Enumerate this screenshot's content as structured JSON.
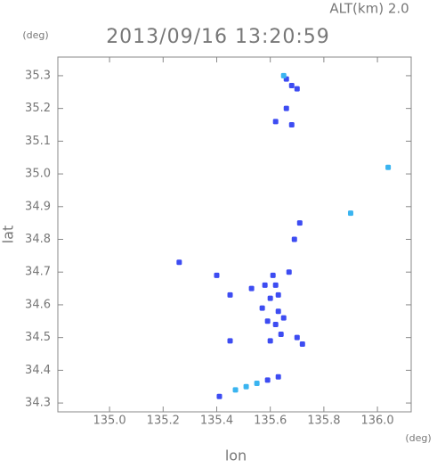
{
  "chart_data": {
    "type": "scatter",
    "title": "2013/09/16 13:20:59",
    "subtitle": "ALT(km)  2.0",
    "x_label": "lon",
    "y_label": "lat",
    "x_unit": "(deg)",
    "y_unit": "(deg)",
    "xlim": [
      134.807,
      136.126
    ],
    "ylim": [
      34.273,
      35.357
    ],
    "xticks": [
      {
        "value": 135.0,
        "label": "135.0"
      },
      135.2,
      135.4,
      135.6,
      135.8,
      {
        "value": 136.0,
        "label": "136.0"
      }
    ],
    "yticks": [
      34.3,
      34.4,
      34.5,
      34.6,
      34.7,
      34.8,
      34.9,
      {
        "value": 35.0,
        "label": "35.0"
      },
      35.1,
      35.2,
      35.3
    ],
    "series": [
      {
        "color": "#3d4cf2",
        "x": [
          135.66,
          135.68,
          135.7,
          135.66,
          135.62,
          135.68,
          135.71,
          135.69,
          135.26,
          135.4,
          135.45,
          135.61,
          135.67,
          135.58,
          135.62,
          135.53,
          135.63,
          135.6,
          135.57,
          135.63,
          135.65,
          135.59,
          135.62,
          135.64,
          135.6,
          135.7,
          135.72,
          135.45,
          135.41,
          135.59,
          135.63
        ],
        "values": [
          35.29,
          35.27,
          35.26,
          35.2,
          35.16,
          35.15,
          34.85,
          34.8,
          34.73,
          34.69,
          34.63,
          34.69,
          34.7,
          34.66,
          34.66,
          34.65,
          34.63,
          34.62,
          34.59,
          34.58,
          34.56,
          34.55,
          34.54,
          34.51,
          34.49,
          34.5,
          34.48,
          34.49,
          34.32,
          34.37,
          34.38
        ]
      },
      {
        "color": "#3ab4f0",
        "x": [
          135.65,
          136.04,
          135.9,
          135.47,
          135.51,
          135.55
        ],
        "values": [
          35.3,
          35.02,
          34.88,
          34.34,
          34.35,
          34.36
        ]
      }
    ]
  }
}
